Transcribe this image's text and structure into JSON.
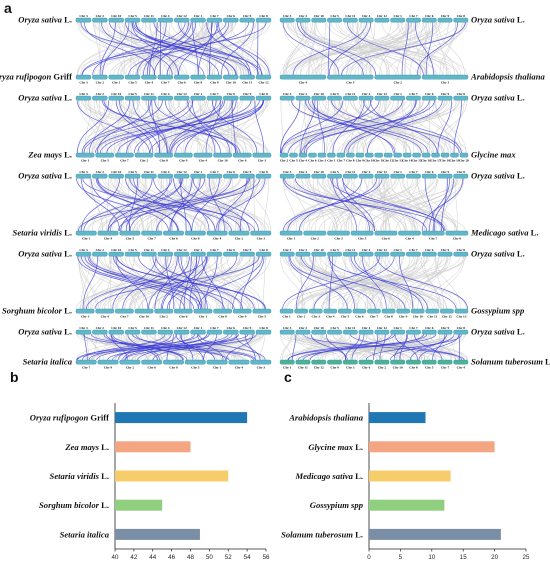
{
  "figure": {
    "letters": {
      "a": "a",
      "b": "b",
      "c": "c"
    }
  },
  "synteny": {
    "left": [
      {
        "top": {
          "italic": "Oryza sativa",
          "suffix": " L.",
          "chrs": [
            "Chr 3",
            "Chr 2",
            "Chr 10",
            "Chr 5",
            "Chr 11",
            "Chr 4",
            "Chr 12",
            "Chr 1",
            "Chr 7",
            "Chr 6",
            "Chr 9",
            "Chr 8"
          ]
        },
        "bottom": {
          "italic": "Oryza rufipogon",
          "suffix": " Griff",
          "chrs": [
            "Chr 3",
            "Chr 2",
            "Chr 1",
            "Chr 5",
            "Chr 4",
            "Chr 7",
            "Chr 6",
            "Chr 8",
            "Chr 9",
            "Chr 10",
            "Chr 11",
            "Chr 12"
          ]
        }
      },
      {
        "top": {
          "italic": "Oryza sativa",
          "suffix": " L.",
          "chrs": [
            "Chr 3",
            "Chr 2",
            "Chr 10",
            "Chr 5",
            "Chr 11",
            "Chr 4",
            "Chr 12",
            "Chr 1",
            "Chr 7",
            "Chr 6",
            "Chr 9",
            "Chr 8"
          ]
        },
        "bottom": {
          "italic": "Zea mays",
          "suffix": " L.",
          "chrs": [
            "Chr 1",
            "Chr 5",
            "Chr 7",
            "Chr 2",
            "Chr 8",
            "Chr 9",
            "Chr 4",
            "Chr 10",
            "Chr 6",
            "Chr 3"
          ]
        }
      },
      {
        "top": {
          "italic": "Oryza sativa",
          "suffix": " L.",
          "chrs": [
            "Chr 3",
            "Chr 2",
            "Chr 10",
            "Chr 5",
            "Chr 11",
            "Chr 4",
            "Chr 12",
            "Chr 1",
            "Chr 7",
            "Chr 6",
            "Chr 9",
            "Chr 8"
          ]
        },
        "bottom": {
          "italic": "Setaria viridis",
          "suffix": " L.",
          "chrs": [
            "Chr 1",
            "Chr 9",
            "Chr 5",
            "Chr 7",
            "Chr 6",
            "Chr 8",
            "Chr 4",
            "Chr 2",
            "Chr 3"
          ]
        }
      },
      {
        "top": {
          "italic": "Oryza sativa",
          "suffix": " L.",
          "chrs": [
            "Chr 3",
            "Chr 2",
            "Chr 10",
            "Chr 5",
            "Chr 11",
            "Chr 4",
            "Chr 12",
            "Chr 1",
            "Chr 7",
            "Chr 6",
            "Chr 9",
            "Chr 8"
          ]
        },
        "bottom": {
          "italic": "Sorghum bicolor",
          "suffix": " L.",
          "chrs": [
            "Chr 3",
            "Chr 4",
            "Chr 7",
            "Chr 10",
            "Chr 2",
            "Chr 6",
            "Chr 1",
            "Chr 8",
            "Chr 9",
            "Chr 5"
          ]
        }
      },
      {
        "top": {
          "italic": "Oryza sativa",
          "suffix": " L.",
          "chrs": [
            "Chr 3",
            "Chr 2",
            "Chr 10",
            "Chr 5",
            "Chr 11",
            "Chr 4",
            "Chr 12",
            "Chr 1",
            "Chr 7",
            "Chr 6",
            "Chr 9",
            "Chr 8"
          ]
        },
        "bottom": {
          "italic": "Setaria italica",
          "suffix": "",
          "chrs": [
            "Chr 7",
            "Chr 9",
            "Chr 2",
            "Chr 6",
            "Chr 8",
            "Chr 5",
            "Chr 1",
            "Chr 4",
            "Chr 3"
          ]
        }
      }
    ],
    "right": [
      {
        "top": {
          "italic": "Oryza sativa",
          "suffix": " L.",
          "chrs": [
            "Chr 3",
            "Chr 2",
            "Chr 10",
            "Chr 5",
            "Chr 11",
            "Chr 4",
            "Chr 12",
            "Chr 1",
            "Chr 7",
            "Chr 6",
            "Chr 9",
            "Chr 8"
          ]
        },
        "bottom": {
          "italic": "Arabidopsis thaliana",
          "suffix": "",
          "chrs": [
            "Chr 4",
            "Chr 5",
            "Chr 2",
            "Chr 1"
          ]
        }
      },
      {
        "top": {
          "italic": "Oryza sativa",
          "suffix": " L.",
          "chrs": [
            "Chr 3",
            "Chr 2",
            "Chr 10",
            "Chr 5",
            "Chr 11",
            "Chr 4",
            "Chr 12",
            "Chr 1",
            "Chr 7",
            "Chr 6",
            "Chr 9",
            "Chr 8"
          ]
        },
        "bottom": {
          "italic": "Glycine max",
          "suffix": "",
          "chrs": [
            "Chr 2",
            "Chr 5",
            "Chr 4",
            "Chr 6",
            "Chr 3",
            "Chr 1",
            "Chr 7",
            "Chr 8",
            "Chr 9",
            "Chr 10",
            "Chr 11",
            "Chr 12",
            "Chr 13",
            "Chr 14",
            "Chr 15",
            "Chr 16",
            "Chr 17",
            "Chr 18",
            "Chr 19",
            "Chr 20"
          ]
        }
      },
      {
        "top": {
          "italic": "Oryza sativa",
          "suffix": " L.",
          "chrs": [
            "Chr 3",
            "Chr 2",
            "Chr 10",
            "Chr 5",
            "Chr 11",
            "Chr 4",
            "Chr 12",
            "Chr 1",
            "Chr 7",
            "Chr 6",
            "Chr 9",
            "Chr 8"
          ]
        },
        "bottom": {
          "italic": "Medicago sativa",
          "suffix": " L.",
          "chrs": [
            "Chr 1",
            "Chr 2",
            "Chr 3",
            "Chr 5",
            "Chr 6",
            "Chr 4",
            "Chr 7",
            "Chr 8"
          ]
        }
      },
      {
        "top": {
          "italic": "Oryza sativa",
          "suffix": " L.",
          "chrs": [
            "Chr 3",
            "Chr 2",
            "Chr 10",
            "Chr 5",
            "Chr 11",
            "Chr 4",
            "Chr 12",
            "Chr 1",
            "Chr 7",
            "Chr 6",
            "Chr 9",
            "Chr 8"
          ]
        },
        "bottom": {
          "italic": "Gossypium spp",
          "suffix": "",
          "chrs": [
            "Chr 1",
            "Chr 2",
            "Chr 3",
            "Chr 4",
            "Chr 5",
            "Chr 6",
            "Chr 7",
            "Chr 8",
            "Chr 9",
            "Chr 10",
            "Chr 11",
            "Chr 12",
            "Chr 13"
          ]
        }
      },
      {
        "top": {
          "italic": "Oryza sativa",
          "suffix": " L.",
          "chrs": [
            "Chr 3",
            "Chr 2",
            "Chr 10",
            "Chr 5",
            "Chr 11",
            "Chr 4",
            "Chr 12",
            "Chr 1",
            "Chr 7",
            "Chr 6",
            "Chr 9",
            "Chr 8"
          ]
        },
        "bottom": {
          "italic": "Solanum tuberosum",
          "suffix": " L.",
          "chrs": [
            "Chr 1",
            "Chr 11",
            "Chr 12",
            "Chr 9",
            "Chr 3",
            "Chr 6",
            "Chr 2",
            "Chr 10",
            "Chr 8",
            "Chr 5",
            "Chr 7",
            "Chr 4"
          ]
        }
      }
    ],
    "colors": {
      "chromosome": "#5fb7c9",
      "chromosome_edge": "#3b8fa2",
      "bottom_chromosome": "#49b397",
      "background_link": "#cfcfcf",
      "highlight_link": "#3c3cd9"
    }
  },
  "chart_data": [
    {
      "type": "bar",
      "orientation": "horizontal",
      "categories": [
        {
          "italic": "Oryza rufipogon",
          "suffix": " Griff"
        },
        {
          "italic": "Zea mays",
          "suffix": " L."
        },
        {
          "italic": "Setaria viridis",
          "suffix": " L."
        },
        {
          "italic": "Sorghum bicolor",
          "suffix": " L."
        },
        {
          "italic": "Setaria italica",
          "suffix": ""
        }
      ],
      "values": [
        54,
        48,
        52,
        45,
        49
      ],
      "colors": [
        "#1f77b4",
        "#f4a582",
        "#f7cc6b",
        "#8fcf7f",
        "#7a8ea6"
      ],
      "xlim": [
        40,
        56
      ],
      "xticks": [
        "40",
        "42",
        "44",
        "46",
        "48",
        "50",
        "52",
        "54",
        "56"
      ]
    },
    {
      "type": "bar",
      "orientation": "horizontal",
      "categories": [
        {
          "italic": "Arabidopsis thaliana",
          "suffix": ""
        },
        {
          "italic": "Glycine max",
          "suffix": " L."
        },
        {
          "italic": "Medicago sativa",
          "suffix": " L."
        },
        {
          "italic": "Gossypium spp",
          "suffix": ""
        },
        {
          "italic": "Solanum tuberosum",
          "suffix": " L."
        }
      ],
      "values": [
        9,
        20,
        13,
        12,
        21
      ],
      "colors": [
        "#1f77b4",
        "#f4a582",
        "#f7cc6b",
        "#8fcf7f",
        "#7a8ea6"
      ],
      "xlim": [
        0,
        25
      ],
      "xticks": [
        "0",
        "5",
        "10",
        "15",
        "20",
        "25"
      ]
    }
  ]
}
